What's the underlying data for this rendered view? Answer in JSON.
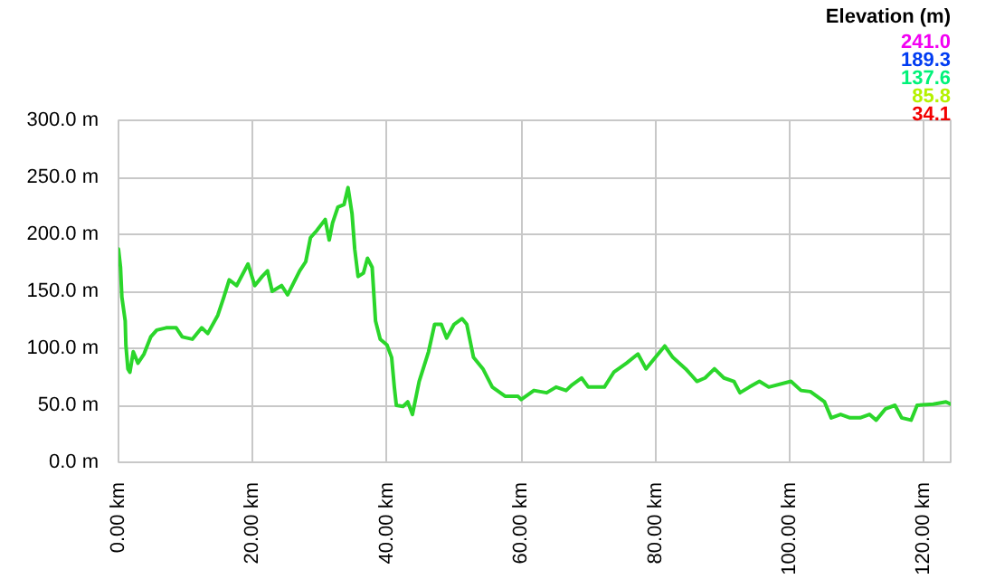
{
  "chart_data": {
    "type": "line",
    "clabel": "Elevation (m)",
    "annotations": [
      "241.0",
      "189.3",
      "137.6",
      "85.8",
      "34.1"
    ],
    "x": [
      0,
      0.3,
      0.5,
      1,
      1.1,
      1.4,
      1.7,
      2.2,
      2.9,
      3.8,
      4.8,
      5.7,
      7.1,
      8.6,
      9.5,
      11,
      12.4,
      13.3,
      14.8,
      15.7,
      16.5,
      17.6,
      19.3,
      20.3,
      21.4,
      22.2,
      22.9,
      24.3,
      25.2,
      27,
      27.9,
      28.6,
      29.5,
      30.8,
      31.4,
      31.9,
      32.7,
      33.6,
      34.2,
      34.8,
      35.2,
      35.7,
      36.5,
      37.1,
      37.8,
      38.3,
      39,
      40,
      40.7,
      41.1,
      41.4,
      42.4,
      43.1,
      43.8,
      44.8,
      46.2,
      47.1,
      48.1,
      48.9,
      50,
      51.2,
      51.9,
      52.9,
      54.3,
      55.7,
      57.6,
      59.5,
      60,
      61.9,
      63.8,
      65.2,
      66.7,
      67.6,
      69,
      70,
      72.4,
      73.8,
      75.7,
      77.4,
      78.6,
      80,
      81.4,
      82.6,
      84.5,
      86.2,
      87.4,
      88.8,
      90.2,
      91.7,
      92.6,
      94,
      95.5,
      96.9,
      100.2,
      101.7,
      103.1,
      105.2,
      106.2,
      107.6,
      109,
      110.5,
      111.9,
      112.9,
      114.3,
      115.7,
      116.7,
      118.1,
      119,
      121.4,
      123.3,
      124
    ],
    "color": "#2bd62b",
    "values": [
      187,
      171,
      145,
      124,
      103,
      82,
      79,
      97,
      87,
      95,
      110,
      116,
      118,
      118,
      110,
      108,
      118,
      113,
      129,
      145,
      160,
      155,
      174,
      155,
      163,
      168,
      150,
      155,
      147,
      168,
      176,
      197,
      203,
      213,
      195,
      210,
      224,
      226,
      241,
      218,
      187,
      163,
      166,
      179,
      171,
      124,
      108,
      103,
      92,
      66,
      50,
      49,
      53,
      42,
      71,
      97,
      121,
      121,
      109,
      121,
      126,
      121,
      92,
      82,
      66,
      58,
      58,
      55,
      63,
      61,
      66,
      63,
      68,
      74,
      66,
      66,
      79,
      87,
      95,
      82,
      92,
      102,
      92,
      82,
      71,
      74,
      82,
      74,
      71,
      61,
      66,
      71,
      66,
      71,
      63,
      62,
      53,
      39,
      42,
      39,
      39,
      42,
      37,
      47,
      50,
      39,
      37,
      50,
      51,
      53,
      51
    ],
    "xlim": [
      0,
      124
    ],
    "ylim": [
      0,
      300
    ],
    "xticks": [
      {
        "value": 0,
        "label": "0.00 km"
      },
      {
        "value": 20,
        "label": "20.00 km"
      },
      {
        "value": 40,
        "label": "40.00 km"
      },
      {
        "value": 60,
        "label": "60.00 km"
      },
      {
        "value": 80,
        "label": "80.00 km"
      },
      {
        "value": 100,
        "label": "100.00 km"
      },
      {
        "value": 120,
        "label": "120.00 km"
      }
    ],
    "yticks": [
      {
        "value": 0,
        "label": "0.0 m"
      },
      {
        "value": 50,
        "label": "50.0 m"
      },
      {
        "value": 100,
        "label": "100.0 m"
      },
      {
        "value": 150,
        "label": "150.0 m"
      },
      {
        "value": 200,
        "label": "200.0 m"
      },
      {
        "value": 250,
        "label": "250.0 m"
      },
      {
        "value": 300,
        "label": "300.0 m"
      }
    ],
    "grid": true
  }
}
